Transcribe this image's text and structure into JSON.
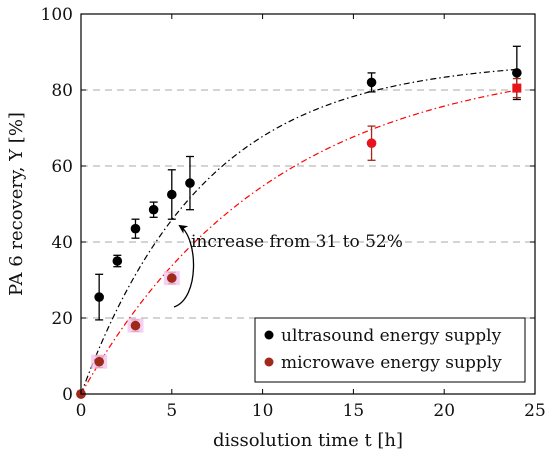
{
  "chart_data": {
    "type": "scatter",
    "xlabel": "dissolution time t [h]",
    "ylabel": "PA 6 recovery, Y [%]",
    "xlim": [
      0,
      25
    ],
    "ylim": [
      0,
      100
    ],
    "x_ticks": [
      0,
      5,
      10,
      15,
      20,
      25
    ],
    "y_ticks": [
      0,
      20,
      40,
      60,
      80,
      100
    ],
    "x_tick_labels": [
      "0",
      "5",
      "10",
      "15",
      "20",
      "25"
    ],
    "y_tick_labels": [
      "0",
      "20",
      "40",
      "60",
      "80",
      "100"
    ],
    "grid": "horizontal dashed",
    "legend_position": "bottom-right",
    "annotation": "increase from 31 to 52%",
    "series": [
      {
        "name": "ultrasound energy supply",
        "color": "#000000",
        "marker": "circle",
        "fit_line_color": "#000000",
        "points": [
          {
            "x": 0,
            "y": 0,
            "err": 0
          },
          {
            "x": 1,
            "y": 25.5,
            "err": 6
          },
          {
            "x": 2,
            "y": 35,
            "err": 1.5
          },
          {
            "x": 3,
            "y": 43.5,
            "err": 2.5
          },
          {
            "x": 4,
            "y": 48.5,
            "err": 2
          },
          {
            "x": 5,
            "y": 52.5,
            "err": 6.5
          },
          {
            "x": 6,
            "y": 55.5,
            "err": 7
          },
          {
            "x": 16,
            "y": 82,
            "err": 2.5
          },
          {
            "x": 24,
            "y": 84.5,
            "err": 7
          }
        ]
      },
      {
        "name": "microwave energy supply",
        "color": "#a0291b",
        "marker": "circle",
        "fit_line_color": "#ff0000",
        "points": [
          {
            "x": 0,
            "y": 0,
            "err": 0
          },
          {
            "x": 1,
            "y": 8.5,
            "err": 1.5
          },
          {
            "x": 3,
            "y": 18,
            "err": 1.5
          },
          {
            "x": 5,
            "y": 30.5,
            "err": 1.5
          },
          {
            "x": 16,
            "y": 66,
            "err": 4.5
          },
          {
            "x": 24,
            "y": 80.5,
            "err": 2.5
          }
        ]
      }
    ]
  }
}
